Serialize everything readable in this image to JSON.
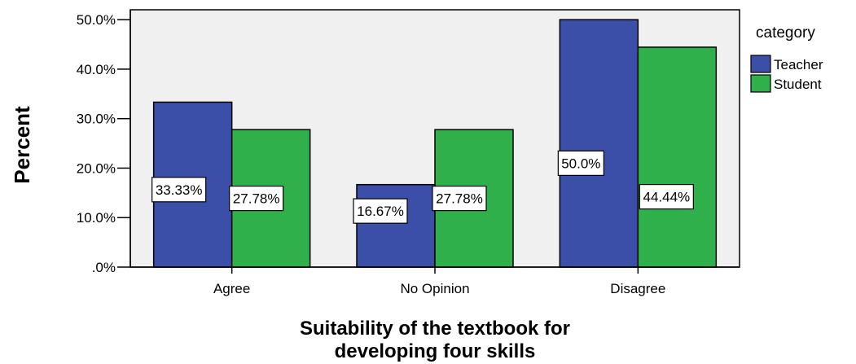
{
  "chart_data": {
    "type": "bar",
    "categories": [
      "Agree",
      "No Opinion",
      "Disagree"
    ],
    "series": [
      {
        "name": "Teacher",
        "values": [
          33.33,
          16.67,
          50.0
        ],
        "labels": [
          "33.33%",
          "16.67%",
          "50.0%"
        ],
        "color": "#3b4ea8"
      },
      {
        "name": "Student",
        "values": [
          27.78,
          27.78,
          44.44
        ],
        "labels": [
          "27.78%",
          "27.78%",
          "44.44%"
        ],
        "color": "#2fb04a"
      }
    ],
    "yticks": [
      {
        "value": 0,
        "label": ".0%"
      },
      {
        "value": 10,
        "label": "10.0%"
      },
      {
        "value": 20,
        "label": "20.0%"
      },
      {
        "value": 30,
        "label": "30.0%"
      },
      {
        "value": 40,
        "label": "40.0%"
      },
      {
        "value": 50,
        "label": "50.0%"
      }
    ],
    "ylim": [
      0,
      52
    ],
    "ylabel": "Percent",
    "xlabel_lines": [
      "Suitability of the textbook for",
      "developing four skills"
    ],
    "legend_title": "category",
    "legend_position": "right",
    "plot_background": "#f0f0f0",
    "grid": false
  }
}
